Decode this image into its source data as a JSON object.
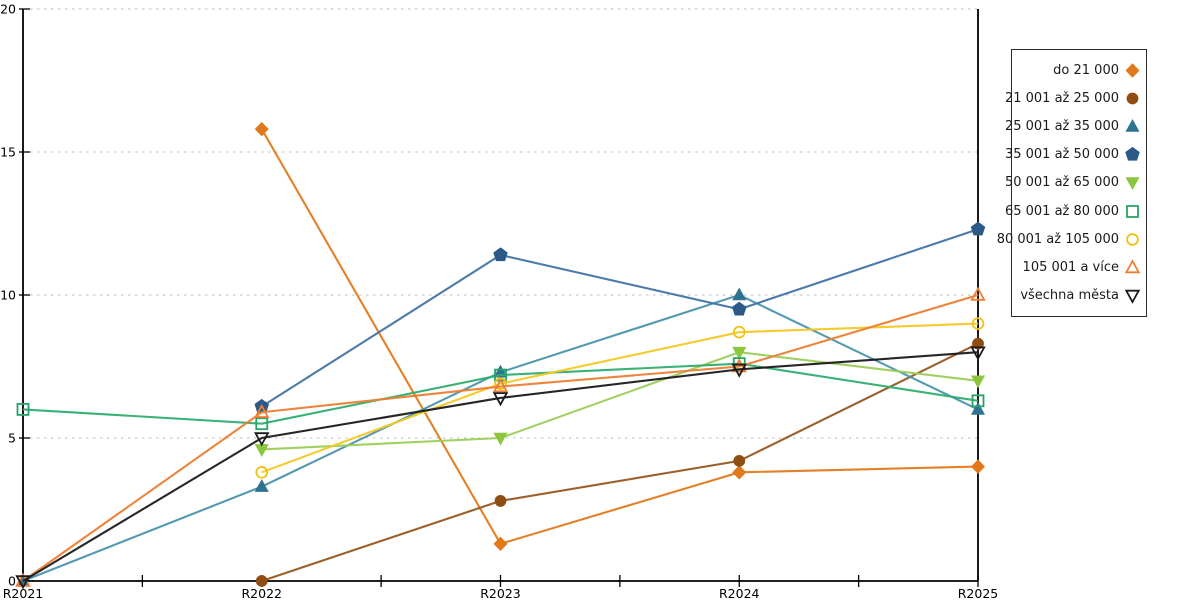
{
  "chart_data": {
    "type": "line",
    "title": "",
    "xlabel": "",
    "ylabel": "",
    "categories": [
      "R2021",
      "R2022",
      "R2023",
      "R2024",
      "R2025"
    ],
    "ylim": [
      0,
      20
    ],
    "yticks": [
      0,
      5,
      10,
      15,
      20
    ],
    "grid": "horizontal-dashed",
    "legend_position": "right-outside",
    "axis_color": "#000000",
    "gridline_color": "#bdbdbd",
    "series": [
      {
        "name": "do 21 000",
        "marker": "diamond",
        "fill": "filled",
        "marker_color": "#e1791c",
        "line_color": "#e1791c",
        "values": [
          null,
          15.8,
          1.3,
          3.8,
          4.0
        ]
      },
      {
        "name": "21 001 až 25 000",
        "marker": "circle",
        "fill": "filled",
        "marker_color": "#8f4d12",
        "line_color": "#96591f",
        "values": [
          null,
          0.0,
          2.8,
          4.2,
          8.3
        ]
      },
      {
        "name": "25 001 až 35 000",
        "marker": "triangle-up",
        "fill": "filled",
        "marker_color": "#2e7391",
        "line_color": "#4a93ad",
        "values": [
          0.0,
          3.3,
          7.3,
          10.0,
          6.0
        ]
      },
      {
        "name": "35 001 až 50 000",
        "marker": "pentagon",
        "fill": "filled",
        "marker_color": "#2b5a87",
        "line_color": "#4273a6",
        "values": [
          null,
          6.1,
          11.4,
          9.5,
          12.3
        ]
      },
      {
        "name": "50 001 až 65 000",
        "marker": "triangle-down",
        "fill": "filled",
        "marker_color": "#8cc63f",
        "line_color": "#9bce58",
        "values": [
          null,
          4.6,
          5.0,
          8.0,
          7.0
        ]
      },
      {
        "name": "65 001 až 80 000",
        "marker": "square",
        "fill": "open",
        "marker_color": "#26a466",
        "line_color": "#2fae6f",
        "values": [
          6.0,
          5.5,
          7.2,
          7.6,
          6.3
        ]
      },
      {
        "name": "80 001 až 105 000",
        "marker": "circle",
        "fill": "open",
        "marker_color": "#f0c213",
        "line_color": "#f3c822",
        "values": [
          null,
          3.8,
          6.9,
          8.7,
          9.0
        ]
      },
      {
        "name": "105 001 a více",
        "marker": "triangle-up",
        "fill": "open",
        "marker_color": "#ed7d31",
        "line_color": "#ed7d31",
        "values": [
          0.0,
          5.9,
          6.8,
          7.5,
          10.0
        ]
      },
      {
        "name": "všechna města",
        "marker": "triangle-down",
        "fill": "open",
        "marker_color": "#1a1a1a",
        "line_color": "#1a1a1a",
        "values": [
          0.0,
          5.0,
          6.4,
          7.4,
          8.0
        ]
      }
    ]
  }
}
